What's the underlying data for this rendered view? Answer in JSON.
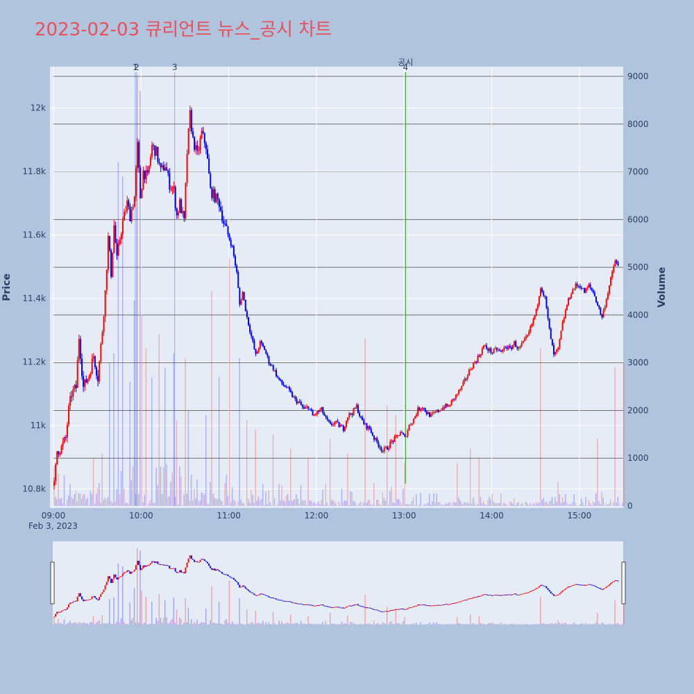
{
  "title": "2023-02-03 큐리언트 뉴스_공시 차트",
  "colors": {
    "up": "#ff0000",
    "down": "#0000ff",
    "title": "#e8505b",
    "background": "#b0c4de",
    "plot_bg": "#e5ecf6"
  },
  "chart_data": {
    "type": "candlestick",
    "x_axis": {
      "ticks": [
        "09:00",
        "10:00",
        "11:00",
        "12:00",
        "13:00",
        "14:00",
        "15:00"
      ],
      "date_label": "Feb 3, 2023",
      "range": [
        "09:00",
        "15:30"
      ]
    },
    "y_axis_price": {
      "title": "Price",
      "ticks": [
        "10.8k",
        "11k",
        "11.2k",
        "11.4k",
        "11.6k",
        "11.8k",
        "12k"
      ],
      "range": [
        10740,
        12130
      ]
    },
    "y_axis_volume": {
      "title": "Volume",
      "ticks": [
        "0",
        "1000",
        "2000",
        "3000",
        "4000",
        "5000",
        "6000",
        "7000",
        "8000",
        "9000"
      ],
      "range": [
        0,
        9200
      ]
    },
    "annotations": [
      {
        "label": "1",
        "time": "09:56"
      },
      {
        "label": "2",
        "time": "09:57"
      },
      {
        "label": "3",
        "time": "10:23"
      },
      {
        "label": "4",
        "time": "13:01",
        "note": "공시"
      }
    ],
    "price_points": [
      [
        "09:00",
        10810
      ],
      [
        "09:02",
        10920
      ],
      [
        "09:05",
        10930
      ],
      [
        "09:08",
        10960
      ],
      [
        "09:10",
        11050
      ],
      [
        "09:12",
        11100
      ],
      [
        "09:15",
        11120
      ],
      [
        "09:17",
        11280
      ],
      [
        "09:20",
        11120
      ],
      [
        "09:24",
        11160
      ],
      [
        "09:27",
        11220
      ],
      [
        "09:30",
        11150
      ],
      [
        "09:33",
        11300
      ],
      [
        "09:35",
        11420
      ],
      [
        "09:37",
        11590
      ],
      [
        "09:39",
        11480
      ],
      [
        "09:41",
        11630
      ],
      [
        "09:43",
        11520
      ],
      [
        "09:45",
        11590
      ],
      [
        "09:47",
        11640
      ],
      [
        "09:50",
        11700
      ],
      [
        "09:52",
        11660
      ],
      [
        "09:55",
        11720
      ],
      [
        "09:57",
        11880
      ],
      [
        "09:59",
        11720
      ],
      [
        "10:01",
        11800
      ],
      [
        "10:04",
        11780
      ],
      [
        "10:07",
        11880
      ],
      [
        "10:10",
        11860
      ],
      [
        "10:13",
        11800
      ],
      [
        "10:16",
        11820
      ],
      [
        "10:19",
        11760
      ],
      [
        "10:22",
        11740
      ],
      [
        "10:24",
        11660
      ],
      [
        "10:26",
        11700
      ],
      [
        "10:29",
        11640
      ],
      [
        "10:31",
        11860
      ],
      [
        "10:33",
        11980
      ],
      [
        "10:35",
        11900
      ],
      [
        "10:38",
        11850
      ],
      [
        "10:41",
        11920
      ],
      [
        "10:44",
        11880
      ],
      [
        "10:47",
        11740
      ],
      [
        "10:50",
        11720
      ],
      [
        "10:53",
        11700
      ],
      [
        "10:56",
        11640
      ],
      [
        "10:59",
        11600
      ],
      [
        "11:02",
        11560
      ],
      [
        "11:05",
        11480
      ],
      [
        "11:07",
        11380
      ],
      [
        "11:09",
        11420
      ],
      [
        "11:12",
        11340
      ],
      [
        "11:15",
        11280
      ],
      [
        "11:18",
        11220
      ],
      [
        "11:21",
        11260
      ],
      [
        "11:24",
        11240
      ],
      [
        "11:27",
        11200
      ],
      [
        "11:30",
        11180
      ],
      [
        "11:33",
        11150
      ],
      [
        "11:36",
        11130
      ],
      [
        "11:39",
        11120
      ],
      [
        "11:42",
        11100
      ],
      [
        "11:45",
        11080
      ],
      [
        "11:48",
        11070
      ],
      [
        "11:51",
        11050
      ],
      [
        "11:54",
        11060
      ],
      [
        "11:57",
        11030
      ],
      [
        "12:00",
        11040
      ],
      [
        "12:03",
        11050
      ],
      [
        "12:06",
        11020
      ],
      [
        "12:09",
        11000
      ],
      [
        "12:12",
        11010
      ],
      [
        "12:15",
        11000
      ],
      [
        "12:18",
        10990
      ],
      [
        "12:21",
        11030
      ],
      [
        "12:24",
        11040
      ],
      [
        "12:27",
        11060
      ],
      [
        "12:30",
        11020
      ],
      [
        "12:33",
        11000
      ],
      [
        "12:36",
        10990
      ],
      [
        "12:39",
        10960
      ],
      [
        "12:42",
        10940
      ],
      [
        "12:45",
        10920
      ],
      [
        "12:48",
        10930
      ],
      [
        "12:51",
        10950
      ],
      [
        "12:54",
        10960
      ],
      [
        "12:57",
        10980
      ],
      [
        "13:00",
        10960
      ],
      [
        "13:03",
        11000
      ],
      [
        "13:06",
        11020
      ],
      [
        "13:09",
        11050
      ],
      [
        "13:12",
        11060
      ],
      [
        "13:15",
        11040
      ],
      [
        "13:18",
        11030
      ],
      [
        "13:21",
        11040
      ],
      [
        "13:24",
        11050
      ],
      [
        "13:27",
        11060
      ],
      [
        "13:30",
        11060
      ],
      [
        "13:33",
        11080
      ],
      [
        "13:36",
        11100
      ],
      [
        "13:39",
        11120
      ],
      [
        "13:42",
        11150
      ],
      [
        "13:45",
        11180
      ],
      [
        "13:48",
        11200
      ],
      [
        "13:51",
        11220
      ],
      [
        "13:54",
        11250
      ],
      [
        "13:57",
        11240
      ],
      [
        "14:00",
        11230
      ],
      [
        "14:03",
        11240
      ],
      [
        "14:06",
        11230
      ],
      [
        "14:09",
        11250
      ],
      [
        "14:12",
        11240
      ],
      [
        "14:15",
        11260
      ],
      [
        "14:18",
        11240
      ],
      [
        "14:21",
        11260
      ],
      [
        "14:24",
        11280
      ],
      [
        "14:27",
        11320
      ],
      [
        "14:30",
        11360
      ],
      [
        "14:33",
        11440
      ],
      [
        "14:36",
        11400
      ],
      [
        "14:39",
        11300
      ],
      [
        "14:42",
        11220
      ],
      [
        "14:45",
        11240
      ],
      [
        "14:48",
        11320
      ],
      [
        "14:51",
        11380
      ],
      [
        "14:54",
        11420
      ],
      [
        "14:57",
        11440
      ],
      [
        "15:00",
        11440
      ],
      [
        "15:03",
        11420
      ],
      [
        "15:06",
        11440
      ],
      [
        "15:09",
        11420
      ],
      [
        "15:12",
        11380
      ],
      [
        "15:15",
        11340
      ],
      [
        "15:18",
        11400
      ],
      [
        "15:21",
        11460
      ],
      [
        "15:24",
        11520
      ],
      [
        "15:26",
        11500
      ]
    ],
    "volume_spikes": [
      [
        "09:27",
        1000
      ],
      [
        "09:33",
        1100
      ],
      [
        "09:38",
        3000
      ],
      [
        "09:41",
        3200
      ],
      [
        "09:44",
        7200
      ],
      [
        "09:47",
        6900
      ],
      [
        "09:52",
        2600
      ],
      [
        "09:55",
        4300
      ],
      [
        "09:57",
        9000
      ],
      [
        "09:59",
        8700
      ],
      [
        "10:00",
        4000
      ],
      [
        "10:03",
        3300
      ],
      [
        "10:07",
        2700
      ],
      [
        "10:12",
        3600
      ],
      [
        "10:16",
        2900
      ],
      [
        "10:22",
        3200
      ],
      [
        "10:24",
        1800
      ],
      [
        "10:30",
        3100
      ],
      [
        "10:32",
        2000
      ],
      [
        "10:44",
        1900
      ],
      [
        "10:48",
        4500
      ],
      [
        "10:53",
        2700
      ],
      [
        "11:00",
        5200
      ],
      [
        "11:07",
        3100
      ],
      [
        "11:12",
        1800
      ],
      [
        "11:18",
        1600
      ],
      [
        "11:30",
        1500
      ],
      [
        "11:42",
        1200
      ],
      [
        "11:54",
        1000
      ],
      [
        "12:09",
        1400
      ],
      [
        "12:21",
        1100
      ],
      [
        "12:33",
        3500
      ],
      [
        "12:48",
        2100
      ],
      [
        "12:54",
        1900
      ],
      [
        "13:00",
        900
      ],
      [
        "13:36",
        900
      ],
      [
        "13:45",
        1200
      ],
      [
        "13:51",
        1000
      ],
      [
        "14:33",
        3300
      ],
      [
        "14:45",
        500
      ],
      [
        "15:12",
        1400
      ],
      [
        "15:24",
        2900
      ],
      [
        "15:30",
        3000
      ]
    ]
  }
}
